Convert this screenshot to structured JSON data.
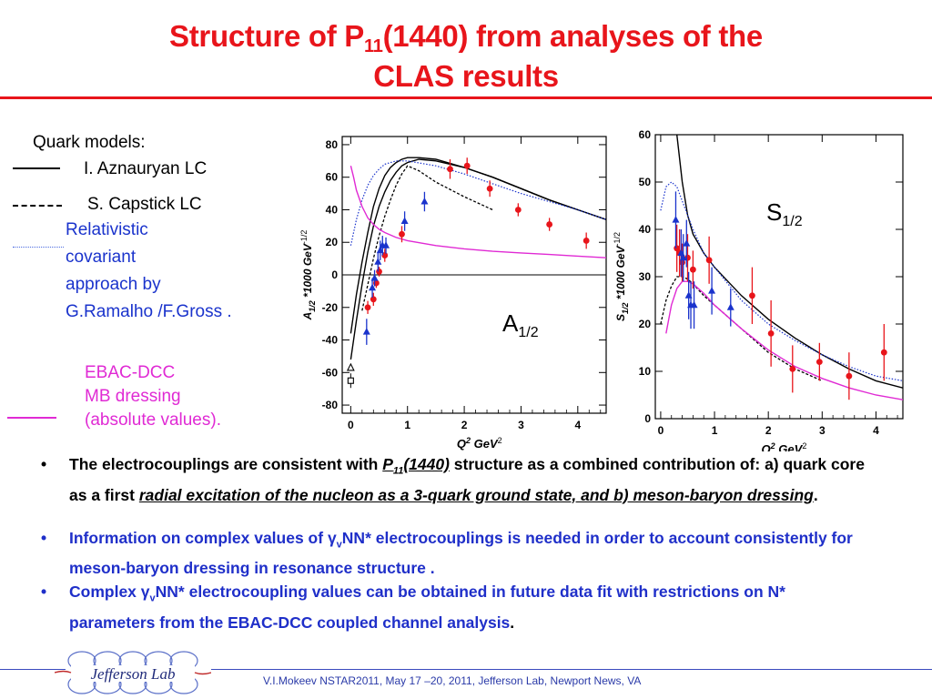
{
  "slide": {
    "title_line1_a": "Structure of P",
    "title_sub": "11",
    "title_line1_b": "(1440)  from analyses of the",
    "title_line2": "CLAS results"
  },
  "legend": {
    "header": "Quark models:",
    "item1": "I.  Aznauryan LC",
    "item2": "S. Capstick LC",
    "item3_lines": [
      "Relativistic",
      "covariant",
      "approach by",
      "G.Ramalho /F.Gross ."
    ],
    "item4_lines": [
      "EBAC-DCC",
      "MB dressing",
      "(absolute values)."
    ]
  },
  "colors": {
    "title": "#e8151b",
    "solid_model": "#000000",
    "blue_model": "#1a33cc",
    "ebac": "#e02ad4",
    "data_red": "#e8151b",
    "data_blue": "#1a33cc"
  },
  "chart_data": [
    {
      "type": "scatter",
      "name": "A1/2",
      "panel_label": "A",
      "panel_label_sub": "1/2",
      "ylabel": "A",
      "ylabel_sub": "1/2",
      "ylabel_rest": " *1000 GeV",
      "ylabel_sup": "-1/2",
      "xlabel": "Q",
      "xlabel_sup": "2",
      "xlabel_rest": " GeV",
      "xlabel_sup2": "2",
      "xlim": [
        -0.15,
        4.5
      ],
      "ylim": [
        -85,
        85
      ],
      "xticks": [
        0,
        1,
        2,
        3,
        4
      ],
      "yticks": [
        -80,
        -60,
        -40,
        -20,
        0,
        20,
        40,
        60,
        80
      ],
      "zero_line": true,
      "red_points": [
        {
          "x": 0.3,
          "y": -20,
          "e": 4
        },
        {
          "x": 0.4,
          "y": -15,
          "e": 4
        },
        {
          "x": 0.45,
          "y": -5,
          "e": 3
        },
        {
          "x": 0.5,
          "y": 2,
          "e": 3
        },
        {
          "x": 0.6,
          "y": 12,
          "e": 4
        },
        {
          "x": 0.9,
          "y": 25,
          "e": 5
        },
        {
          "x": 1.75,
          "y": 65,
          "e": 6
        },
        {
          "x": 2.05,
          "y": 67,
          "e": 5
        },
        {
          "x": 2.45,
          "y": 53,
          "e": 5
        },
        {
          "x": 2.95,
          "y": 40,
          "e": 4
        },
        {
          "x": 3.5,
          "y": 31,
          "e": 4
        },
        {
          "x": 4.15,
          "y": 21,
          "e": 5
        }
      ],
      "blue_points": [
        {
          "x": 0.28,
          "y": -35,
          "e": 8
        },
        {
          "x": 0.38,
          "y": -8,
          "e": 6
        },
        {
          "x": 0.42,
          "y": -2,
          "e": 5
        },
        {
          "x": 0.48,
          "y": 8,
          "e": 6
        },
        {
          "x": 0.52,
          "y": 15,
          "e": 6
        },
        {
          "x": 0.56,
          "y": 18,
          "e": 6
        },
        {
          "x": 0.62,
          "y": 18,
          "e": 5
        },
        {
          "x": 0.95,
          "y": 33,
          "e": 6
        },
        {
          "x": 1.3,
          "y": 45,
          "e": 6
        }
      ],
      "open_points": [
        {
          "x": 0.0,
          "y": -65,
          "shape": "square"
        },
        {
          "x": 0.0,
          "y": -57,
          "shape": "triangle"
        }
      ],
      "curves": [
        {
          "model": "aznauryan",
          "style": "solid",
          "color": "#000000",
          "x": [
            0.0,
            0.1,
            0.2,
            0.3,
            0.4,
            0.5,
            0.6,
            0.7,
            0.8,
            0.9,
            1.0,
            1.2,
            1.5,
            2.0,
            2.5,
            3.0,
            3.5,
            4.0,
            4.5
          ],
          "y": [
            -36,
            -12,
            8,
            26,
            42,
            53,
            61,
            66,
            69,
            71,
            72,
            72,
            71,
            66,
            60,
            53,
            46,
            40,
            34
          ]
        },
        {
          "model": "aznauryan-b",
          "style": "solid",
          "color": "#000000",
          "x": [
            0.0,
            0.1,
            0.2,
            0.3,
            0.4,
            0.5,
            0.6,
            0.7,
            0.8,
            0.9,
            1.0,
            1.2,
            1.5,
            2.0,
            2.5,
            3.0,
            3.5,
            4.0,
            4.5
          ],
          "y": [
            -52,
            -28,
            -6,
            14,
            30,
            42,
            51,
            58,
            63,
            67,
            69,
            71,
            70,
            66,
            60,
            53,
            46,
            40,
            34
          ]
        },
        {
          "model": "capstick",
          "style": "dash",
          "color": "#000000",
          "x": [
            0.2,
            0.3,
            0.4,
            0.5,
            0.6,
            0.7,
            0.8,
            0.9,
            1.0,
            1.2,
            1.5,
            2.0,
            2.5
          ],
          "y": [
            -22,
            -6,
            10,
            24,
            36,
            46,
            55,
            62,
            67,
            64,
            57,
            48,
            40
          ]
        },
        {
          "model": "ramalho-gross",
          "style": "dot",
          "color": "#1a33cc",
          "x": [
            0.0,
            0.1,
            0.2,
            0.3,
            0.4,
            0.5,
            0.6,
            0.8,
            1.0,
            1.5,
            2.0,
            2.5,
            3.0,
            3.5,
            4.0,
            4.5
          ],
          "y": [
            18,
            34,
            46,
            55,
            61,
            65,
            68,
            70,
            70,
            67,
            62,
            56,
            50,
            45,
            40,
            34
          ]
        },
        {
          "model": "ebac-dcc",
          "style": "solid",
          "color": "#e02ad4",
          "x": [
            0.0,
            0.05,
            0.1,
            0.2,
            0.3,
            0.4,
            0.5,
            0.6,
            0.8,
            1.0,
            1.5,
            2.0,
            2.5,
            3.0,
            3.5,
            4.0,
            4.5
          ],
          "y": [
            67,
            60,
            52,
            42,
            35,
            31,
            28,
            26,
            23,
            21,
            18,
            16,
            14.5,
            13.5,
            12.5,
            11.5,
            10.5
          ]
        }
      ]
    },
    {
      "type": "scatter",
      "name": "S1/2",
      "panel_label": "S",
      "panel_label_sub": "1/2",
      "ylabel": "S",
      "ylabel_sub": "1/2",
      "ylabel_rest": " *1000 GeV",
      "ylabel_sup": "-1/2",
      "xlabel": "Q",
      "xlabel_sup": "2",
      "xlabel_rest": " GeV",
      "xlabel_sup2": "2",
      "xlim": [
        -0.1,
        4.5
      ],
      "ylim": [
        0,
        60
      ],
      "xticks": [
        0,
        1,
        2,
        3,
        4
      ],
      "yticks": [
        0,
        10,
        20,
        30,
        40,
        50,
        60
      ],
      "zero_line": false,
      "red_points": [
        {
          "x": 0.3,
          "y": 36,
          "e": 5
        },
        {
          "x": 0.35,
          "y": 35,
          "e": 5
        },
        {
          "x": 0.4,
          "y": 33,
          "e": 4
        },
        {
          "x": 0.5,
          "y": 34,
          "e": 5
        },
        {
          "x": 0.6,
          "y": 31.5,
          "e": 4
        },
        {
          "x": 0.9,
          "y": 33.5,
          "e": 5
        },
        {
          "x": 1.7,
          "y": 26,
          "e": 6
        },
        {
          "x": 2.05,
          "y": 18,
          "e": 7
        },
        {
          "x": 2.45,
          "y": 10.5,
          "e": 5
        },
        {
          "x": 2.95,
          "y": 12,
          "e": 4
        },
        {
          "x": 3.5,
          "y": 9,
          "e": 5
        },
        {
          "x": 4.15,
          "y": 14,
          "e": 6
        }
      ],
      "blue_points": [
        {
          "x": 0.28,
          "y": 42,
          "e": 6
        },
        {
          "x": 0.38,
          "y": 35,
          "e": 5
        },
        {
          "x": 0.42,
          "y": 34,
          "e": 5
        },
        {
          "x": 0.48,
          "y": 37,
          "e": 5
        },
        {
          "x": 0.52,
          "y": 26,
          "e": 5
        },
        {
          "x": 0.56,
          "y": 24,
          "e": 5
        },
        {
          "x": 0.62,
          "y": 24,
          "e": 5
        },
        {
          "x": 0.95,
          "y": 27,
          "e": 5
        },
        {
          "x": 1.3,
          "y": 23.5,
          "e": 4
        }
      ],
      "open_points": [],
      "curves": [
        {
          "model": "aznauryan",
          "style": "solid",
          "color": "#000000",
          "x": [
            0.3,
            0.4,
            0.5,
            0.6,
            0.8,
            1.0,
            1.5,
            2.0,
            2.5,
            3.0,
            3.5,
            4.0,
            4.5
          ],
          "y": [
            60,
            50,
            43,
            39,
            35,
            32,
            26,
            21,
            17,
            13.5,
            10.5,
            8,
            6.5
          ]
        },
        {
          "model": "capstick",
          "style": "dash",
          "color": "#000000",
          "x": [
            0.0,
            0.1,
            0.2,
            0.3,
            0.4,
            0.5,
            0.6,
            0.8,
            1.0,
            1.5,
            2.0,
            2.5,
            3.0
          ],
          "y": [
            20,
            25,
            28,
            30,
            30,
            29.5,
            28.5,
            26,
            24,
            19,
            14,
            10.5,
            8
          ]
        },
        {
          "model": "ramalho-gross",
          "style": "dot",
          "color": "#1a33cc",
          "x": [
            0.0,
            0.1,
            0.2,
            0.3,
            0.4,
            0.5,
            0.6,
            0.8,
            1.0,
            1.5,
            2.0,
            2.5,
            3.0,
            3.5,
            4.0,
            4.5
          ],
          "y": [
            44,
            49,
            50,
            49,
            46,
            43,
            40,
            35,
            32,
            25,
            20,
            16.5,
            13.5,
            11,
            9,
            8
          ]
        },
        {
          "model": "ebac-dcc",
          "style": "solid",
          "color": "#e02ad4",
          "x": [
            0.1,
            0.2,
            0.3,
            0.4,
            0.5,
            0.6,
            0.8,
            1.0,
            1.5,
            2.0,
            2.5,
            3.0,
            3.5,
            4.0,
            4.5
          ],
          "y": [
            18,
            24,
            27.5,
            29,
            29,
            28.5,
            26.5,
            24,
            19,
            14.5,
            11,
            8.5,
            6.5,
            5,
            4
          ]
        }
      ]
    }
  ],
  "bullets": [
    {
      "parts": [
        "The electrocouplings  are consistent with ",
        "P",
        "11",
        "(1440)",
        " structure as a combined contribution of: a) quark core as  a first ",
        "radial excitation of the nucleon as a 3-quark ground state, and b) meson-baryon  dressing",
        "."
      ]
    },
    {
      "parts": [
        "Information on complex values of ",
        "γ",
        "v",
        "NN*  electrocouplings is needed in order to account consistently for meson-baryon dressing in resonance structure ."
      ]
    },
    {
      "parts": [
        "Complex ",
        "γ",
        "v",
        "NN*  electrocoupling values can be obtained in future data fit with restrictions on N* parameters  from  the EBAC-DCC coupled channel analysis",
        "."
      ]
    }
  ],
  "footer": {
    "text": "V.I.Mokeev   NSTAR2011, May  17 –20, 2011, Jefferson Lab, Newport News, VA",
    "logo_text": "Jefferson Lab"
  }
}
